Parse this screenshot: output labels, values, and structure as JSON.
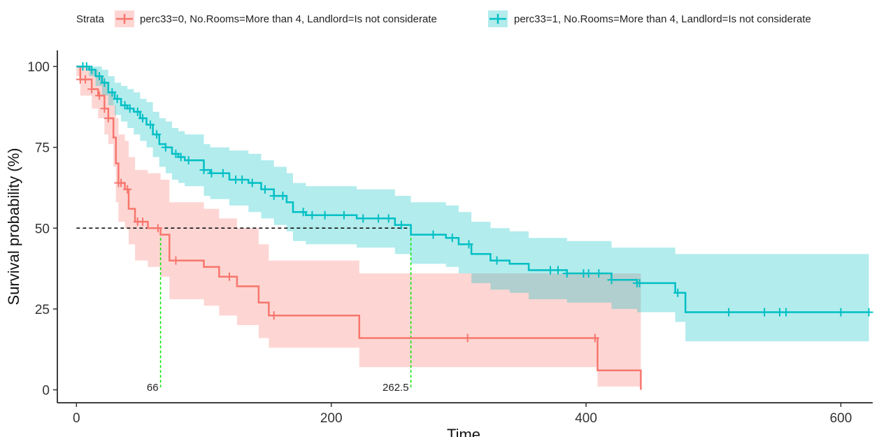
{
  "chart_data": {
    "type": "line",
    "subtype": "kaplan-meier",
    "xlabel": "Time",
    "ylabel": "Survival probability (%)",
    "xlim": [
      -15,
      625
    ],
    "ylim": [
      -4,
      105
    ],
    "xticks": [
      0,
      200,
      400,
      600
    ],
    "yticks": [
      0,
      25,
      50,
      75,
      100
    ],
    "grid": false,
    "legend": {
      "position": "top",
      "title": "Strata"
    },
    "median_line": {
      "y": 50,
      "labels": [
        {
          "x": 66,
          "text": "66"
        },
        {
          "x": 262.5,
          "text": "262.5"
        }
      ]
    },
    "series": [
      {
        "name": "perc33=0, No.Rooms=More than 4, Landlord=Is not considerate",
        "color": "#F8766D",
        "band_color": "#F8766D",
        "steps": [
          [
            0,
            100
          ],
          [
            3,
            96
          ],
          [
            12,
            93
          ],
          [
            17,
            91
          ],
          [
            22,
            87
          ],
          [
            25,
            84
          ],
          [
            29,
            78
          ],
          [
            31,
            70
          ],
          [
            33,
            64
          ],
          [
            38,
            62
          ],
          [
            41,
            56
          ],
          [
            46,
            52
          ],
          [
            56,
            50
          ],
          [
            66,
            48
          ],
          [
            73,
            40
          ],
          [
            100,
            38
          ],
          [
            112,
            35
          ],
          [
            126,
            32
          ],
          [
            143,
            27
          ],
          [
            151,
            23
          ],
          [
            222,
            16
          ],
          [
            409,
            6
          ],
          [
            443,
            0
          ]
        ],
        "end_x": 443,
        "upper": [
          [
            0,
            100
          ],
          [
            3,
            100
          ],
          [
            12,
            99
          ],
          [
            17,
            97
          ],
          [
            22,
            95
          ],
          [
            25,
            92
          ],
          [
            29,
            88
          ],
          [
            31,
            84
          ],
          [
            33,
            79
          ],
          [
            38,
            77
          ],
          [
            41,
            72
          ],
          [
            46,
            68
          ],
          [
            56,
            67
          ],
          [
            66,
            65
          ],
          [
            73,
            58
          ],
          [
            100,
            56
          ],
          [
            112,
            53
          ],
          [
            126,
            50
          ],
          [
            143,
            45
          ],
          [
            151,
            40
          ],
          [
            222,
            36
          ],
          [
            409,
            36
          ],
          [
            443,
            36
          ]
        ],
        "lower": [
          [
            0,
            97
          ],
          [
            3,
            91
          ],
          [
            12,
            87
          ],
          [
            17,
            84
          ],
          [
            22,
            79
          ],
          [
            25,
            76
          ],
          [
            29,
            69
          ],
          [
            31,
            58
          ],
          [
            33,
            52
          ],
          [
            38,
            50
          ],
          [
            41,
            45
          ],
          [
            46,
            40
          ],
          [
            56,
            38
          ],
          [
            66,
            35
          ],
          [
            73,
            28
          ],
          [
            100,
            26
          ],
          [
            112,
            23
          ],
          [
            126,
            20
          ],
          [
            143,
            16
          ],
          [
            151,
            13
          ],
          [
            222,
            7
          ],
          [
            409,
            1
          ],
          [
            443,
            0
          ]
        ],
        "censor_x": [
          3,
          7,
          12,
          18,
          22,
          25,
          33,
          35,
          40,
          48,
          52,
          64,
          78,
          120,
          155,
          307,
          407
        ]
      },
      {
        "name": "perc33=1, No.Rooms=More than 4, Landlord=Is not considerate",
        "color": "#00BFC4",
        "band_color": "#00BFC4",
        "steps": [
          [
            0,
            100
          ],
          [
            10,
            99
          ],
          [
            15,
            97
          ],
          [
            20,
            95
          ],
          [
            25,
            92
          ],
          [
            30,
            90
          ],
          [
            35,
            88
          ],
          [
            40,
            87
          ],
          [
            45,
            86
          ],
          [
            50,
            84
          ],
          [
            55,
            82
          ],
          [
            60,
            79
          ],
          [
            65,
            76
          ],
          [
            70,
            75
          ],
          [
            75,
            73
          ],
          [
            80,
            72
          ],
          [
            85,
            71
          ],
          [
            100,
            68
          ],
          [
            105,
            67
          ],
          [
            120,
            65
          ],
          [
            135,
            64
          ],
          [
            145,
            62
          ],
          [
            155,
            60
          ],
          [
            165,
            58
          ],
          [
            170,
            55
          ],
          [
            180,
            54
          ],
          [
            220,
            53
          ],
          [
            250,
            51
          ],
          [
            262.5,
            48
          ],
          [
            290,
            47
          ],
          [
            300,
            45
          ],
          [
            310,
            42
          ],
          [
            325,
            40
          ],
          [
            340,
            39
          ],
          [
            355,
            37
          ],
          [
            385,
            36
          ],
          [
            420,
            34
          ],
          [
            440,
            33
          ],
          [
            470,
            30
          ],
          [
            478,
            24
          ]
        ],
        "end_x": 622,
        "upper": [
          [
            0,
            100
          ],
          [
            10,
            100
          ],
          [
            15,
            100
          ],
          [
            20,
            99
          ],
          [
            25,
            97
          ],
          [
            30,
            95
          ],
          [
            35,
            94
          ],
          [
            40,
            93
          ],
          [
            45,
            92
          ],
          [
            50,
            90
          ],
          [
            55,
            89
          ],
          [
            60,
            86
          ],
          [
            65,
            84
          ],
          [
            70,
            83
          ],
          [
            75,
            81
          ],
          [
            80,
            80
          ],
          [
            85,
            79
          ],
          [
            100,
            76
          ],
          [
            105,
            75
          ],
          [
            120,
            74
          ],
          [
            135,
            73
          ],
          [
            145,
            71
          ],
          [
            155,
            69
          ],
          [
            165,
            67
          ],
          [
            170,
            64
          ],
          [
            180,
            63
          ],
          [
            220,
            62
          ],
          [
            250,
            60
          ],
          [
            262.5,
            58
          ],
          [
            290,
            57
          ],
          [
            300,
            55
          ],
          [
            310,
            52
          ],
          [
            325,
            50
          ],
          [
            340,
            49
          ],
          [
            355,
            47
          ],
          [
            385,
            46
          ],
          [
            420,
            44
          ],
          [
            440,
            44
          ],
          [
            470,
            42
          ],
          [
            478,
            42
          ]
        ],
        "lower": [
          [
            0,
            100
          ],
          [
            10,
            97
          ],
          [
            15,
            94
          ],
          [
            20,
            91
          ],
          [
            25,
            88
          ],
          [
            30,
            85
          ],
          [
            35,
            83
          ],
          [
            40,
            81
          ],
          [
            45,
            79
          ],
          [
            50,
            77
          ],
          [
            55,
            75
          ],
          [
            60,
            72
          ],
          [
            65,
            69
          ],
          [
            70,
            67
          ],
          [
            75,
            65
          ],
          [
            80,
            64
          ],
          [
            85,
            63
          ],
          [
            100,
            60
          ],
          [
            105,
            59
          ],
          [
            120,
            57
          ],
          [
            135,
            55
          ],
          [
            145,
            53
          ],
          [
            155,
            51
          ],
          [
            165,
            49
          ],
          [
            170,
            46
          ],
          [
            180,
            45
          ],
          [
            220,
            44
          ],
          [
            250,
            42
          ],
          [
            262.5,
            39
          ],
          [
            290,
            38
          ],
          [
            300,
            36
          ],
          [
            310,
            33
          ],
          [
            325,
            31
          ],
          [
            340,
            30
          ],
          [
            355,
            28
          ],
          [
            385,
            27
          ],
          [
            420,
            25
          ],
          [
            440,
            24
          ],
          [
            470,
            21
          ],
          [
            478,
            15
          ]
        ],
        "censor_x": [
          5,
          8,
          12,
          18,
          22,
          28,
          32,
          38,
          42,
          48,
          52,
          58,
          63,
          70,
          78,
          82,
          88,
          100,
          106,
          115,
          125,
          130,
          138,
          148,
          155,
          162,
          178,
          185,
          195,
          210,
          225,
          237,
          245,
          255,
          280,
          295,
          308,
          330,
          372,
          378,
          385,
          398,
          402,
          410,
          420,
          440,
          442,
          472,
          512,
          540,
          552,
          557,
          600,
          622
        ]
      }
    ]
  }
}
